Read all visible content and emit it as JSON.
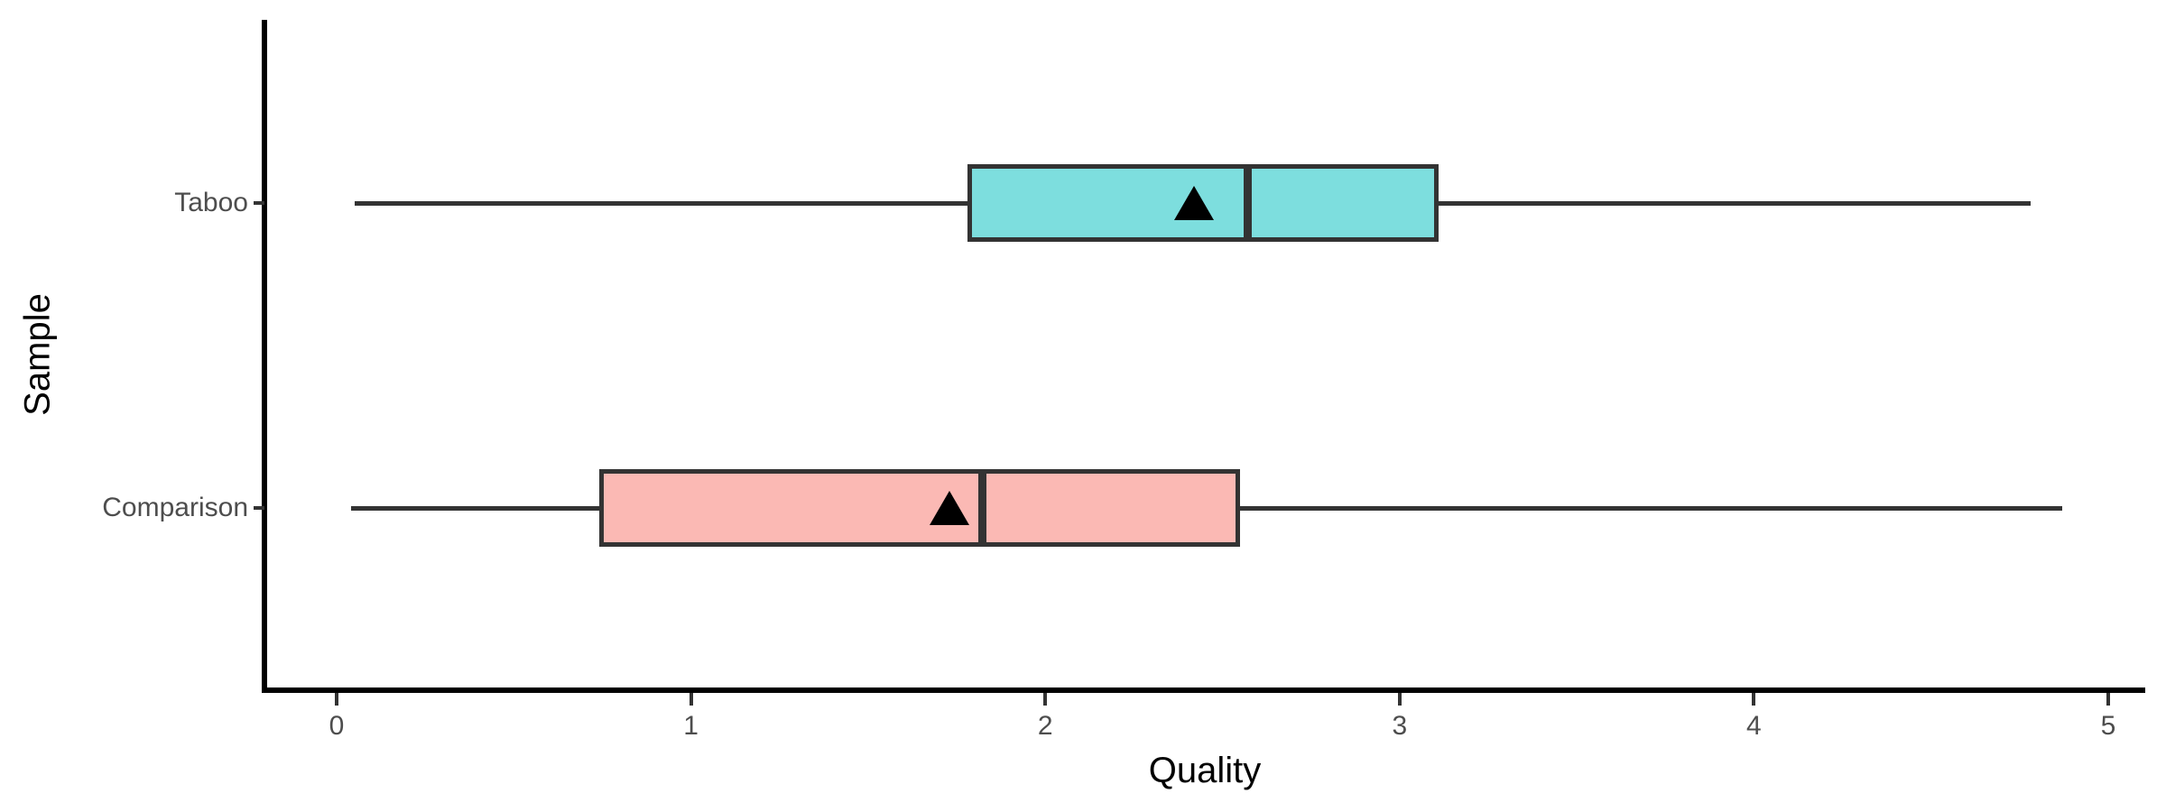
{
  "chart_data": {
    "type": "boxplot",
    "orientation": "horizontal",
    "title": "",
    "xlabel": "Quality",
    "ylabel": "Sample",
    "xlim": [
      0,
      5
    ],
    "x_ticks": [
      "0",
      "1",
      "2",
      "3",
      "4",
      "5"
    ],
    "categories": [
      "Taboo",
      "Comparison"
    ],
    "series": [
      {
        "name": "Taboo",
        "min": 0.05,
        "q1": 1.78,
        "median": 2.57,
        "q3": 3.11,
        "max": 4.78,
        "mean": 2.42,
        "fill": "#7DDEDE"
      },
      {
        "name": "Comparison",
        "min": 0.04,
        "q1": 0.74,
        "median": 1.82,
        "q3": 2.55,
        "max": 4.87,
        "mean": 1.73,
        "fill": "#FBB9B4"
      }
    ],
    "mean_marker": "triangle",
    "legend": "none",
    "grid": "off",
    "stroke_color": "#333333",
    "tick_text_color": "#4D4D4D",
    "axis_color": "#000000"
  }
}
